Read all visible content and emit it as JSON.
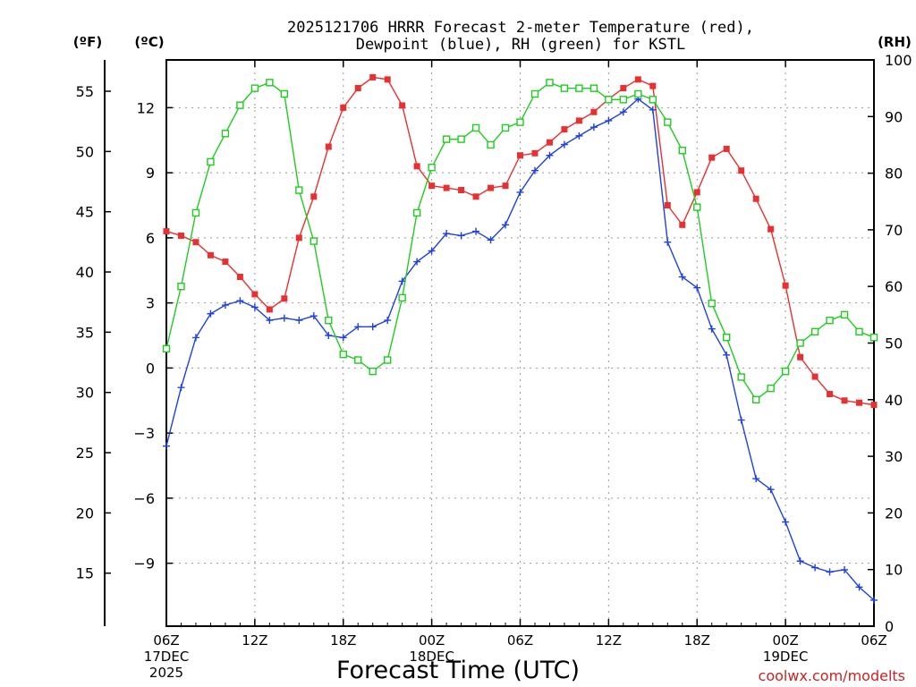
{
  "chart_data": {
    "type": "line",
    "title_lines": [
      "2025121706 HRRR Forecast 2-meter Temperature (red),",
      "Dewpoint (blue), RH (green) for KSTL"
    ],
    "xlabel": "Forecast Time (UTC)",
    "credit": "coolwx.com/modelts",
    "units": {
      "fahrenheit": "(ºF)",
      "celsius": "(ºC)",
      "rh": "(RH)"
    },
    "x_range_hours": [
      0,
      48
    ],
    "x_ticks": [
      {
        "h": 0,
        "lines": [
          "06Z",
          "17DEC",
          "2025"
        ]
      },
      {
        "h": 6,
        "lines": [
          "12Z"
        ]
      },
      {
        "h": 12,
        "lines": [
          "18Z"
        ]
      },
      {
        "h": 18,
        "lines": [
          "00Z",
          "18DEC"
        ]
      },
      {
        "h": 24,
        "lines": [
          "06Z"
        ]
      },
      {
        "h": 30,
        "lines": [
          "12Z"
        ]
      },
      {
        "h": 36,
        "lines": [
          "18Z"
        ]
      },
      {
        "h": 42,
        "lines": [
          "00Z",
          "19DEC"
        ]
      },
      {
        "h": 48,
        "lines": [
          "06Z"
        ]
      }
    ],
    "y_celsius": {
      "range": [
        -11.9,
        14.2
      ],
      "ticks": [
        "12",
        "9",
        "6",
        "3",
        "0",
        "−3",
        "−6",
        "−9"
      ],
      "tick_values": [
        12,
        9,
        6,
        3,
        0,
        -3,
        -6,
        -9
      ]
    },
    "y_fahrenheit": {
      "range": [
        10.6,
        57.6
      ],
      "ticks": [
        "55",
        "50",
        "45",
        "40",
        "35",
        "30",
        "25",
        "20",
        "15"
      ],
      "tick_values": [
        55,
        50,
        45,
        40,
        35,
        30,
        25,
        20,
        15
      ]
    },
    "y_rh": {
      "range": [
        0,
        100
      ],
      "ticks": [
        "100",
        "90",
        "80",
        "70",
        "60",
        "50",
        "40",
        "30",
        "20",
        "10",
        "0"
      ],
      "tick_values": [
        100,
        90,
        80,
        70,
        60,
        50,
        40,
        30,
        20,
        10,
        0
      ]
    },
    "series": [
      {
        "name": "2-meter Temperature",
        "color": "#e83030",
        "axis": "celsius",
        "marker": "filled-square",
        "values": [
          6.3,
          6.1,
          5.8,
          5.2,
          4.9,
          4.2,
          3.4,
          2.7,
          3.2,
          6.0,
          7.9,
          10.2,
          12.0,
          12.9,
          13.4,
          13.3,
          12.1,
          9.3,
          8.4,
          8.3,
          8.2,
          7.9,
          8.3,
          8.4,
          9.8,
          9.9,
          10.4,
          11.0,
          11.4,
          11.8,
          12.4,
          12.9,
          13.3,
          13.0,
          7.5,
          6.6,
          8.1,
          9.7,
          10.1,
          9.1,
          7.8,
          6.4,
          3.8,
          0.5,
          -0.4,
          -1.2,
          -1.5,
          -1.6,
          -1.7
        ]
      },
      {
        "name": "Dewpoint",
        "color": "#2040e0",
        "axis": "celsius",
        "marker": "plus",
        "values": [
          -3.6,
          -0.9,
          1.4,
          2.5,
          2.9,
          3.1,
          2.8,
          2.2,
          2.3,
          2.2,
          2.4,
          1.5,
          1.4,
          1.9,
          1.9,
          2.2,
          4.0,
          4.9,
          5.4,
          6.2,
          6.1,
          6.3,
          5.9,
          6.6,
          8.1,
          9.1,
          9.8,
          10.3,
          10.7,
          11.1,
          11.4,
          11.8,
          12.4,
          11.9,
          5.8,
          4.2,
          3.7,
          1.8,
          0.6,
          -2.4,
          -5.1,
          -5.6,
          -7.1,
          -8.9,
          -9.2,
          -9.4,
          -9.3,
          -10.1,
          -10.7
        ]
      },
      {
        "name": "RH",
        "color": "#20cc20",
        "axis": "rh",
        "marker": "open-square",
        "values": [
          49,
          60,
          73,
          82,
          87,
          92,
          95,
          96,
          94,
          77,
          68,
          54,
          48,
          47,
          45,
          47,
          58,
          73,
          81,
          86,
          86,
          88,
          85,
          88,
          89,
          94,
          96,
          95,
          95,
          95,
          93,
          93,
          94,
          93,
          89,
          84,
          74,
          57,
          51,
          44,
          40,
          42,
          45,
          50,
          52,
          54,
          55,
          52,
          51
        ]
      }
    ]
  }
}
